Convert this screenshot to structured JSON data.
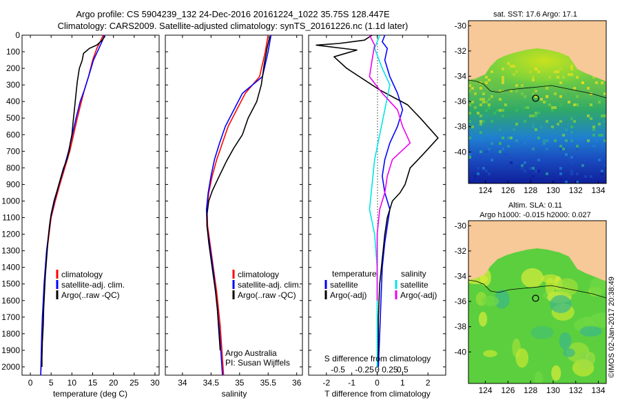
{
  "header": {
    "line1": "Argo profile: CS 5904239_132 24-Dec-2016 20161224_1022 35.75S 128.447E",
    "line2": "Climatology: CARS2009. Satellite-adjusted climatology: synTS_20161226.nc (1.1d later)"
  },
  "colors": {
    "climatology": "#ff0000",
    "satellite": "#0000ff",
    "argo": "#000000",
    "salinity_satellite": "#00e5e5",
    "salinity_argo": "#ee00ee",
    "land": "#f7c898"
  },
  "chart_data": [
    {
      "type": "line",
      "name": "temperature-profile",
      "xlabel": "temperature (deg C)",
      "ylabel": "",
      "xlim": [
        -2,
        31
      ],
      "ylim": [
        2050,
        0
      ],
      "xticks": [
        0,
        5,
        10,
        15,
        20,
        25,
        30
      ],
      "yticks": [
        0,
        100,
        200,
        300,
        400,
        500,
        600,
        700,
        800,
        900,
        1000,
        1100,
        1200,
        1300,
        1400,
        1500,
        1600,
        1700,
        1800,
        1900,
        2000
      ],
      "legend": [
        "climatology",
        "satellite-adj. clim.",
        "Argo(..raw -QC)"
      ],
      "series": [
        {
          "name": "climatology",
          "color": "#ff0000",
          "points": [
            [
              17.5,
              0
            ],
            [
              17,
              30
            ],
            [
              16,
              80
            ],
            [
              15,
              150
            ],
            [
              14,
              250
            ],
            [
              13,
              330
            ],
            [
              12.3,
              400
            ],
            [
              11.3,
              500
            ],
            [
              10.4,
              600
            ],
            [
              9.5,
              700
            ],
            [
              8.3,
              800
            ],
            [
              7.1,
              900
            ],
            [
              6,
              1000
            ],
            [
              5,
              1100
            ],
            [
              4.5,
              1200
            ],
            [
              4,
              1300
            ],
            [
              3.7,
              1400
            ],
            [
              3.4,
              1500
            ],
            [
              3.2,
              1600
            ],
            [
              3,
              1700
            ],
            [
              2.8,
              1800
            ],
            [
              2.7,
              1900
            ],
            [
              2.6,
              2000
            ],
            [
              2.5,
              2050
            ]
          ]
        },
        {
          "name": "satellite-adj. clim.",
          "color": "#0000ff",
          "points": [
            [
              17.8,
              0
            ],
            [
              17.4,
              30
            ],
            [
              16.5,
              80
            ],
            [
              15.2,
              150
            ],
            [
              14,
              250
            ],
            [
              13,
              330
            ],
            [
              12,
              400
            ],
            [
              11,
              500
            ],
            [
              10.1,
              600
            ],
            [
              9.2,
              700
            ],
            [
              8.1,
              800
            ],
            [
              6.9,
              900
            ],
            [
              5.8,
              1000
            ],
            [
              4.9,
              1100
            ],
            [
              4.4,
              1200
            ],
            [
              3.9,
              1300
            ],
            [
              3.6,
              1400
            ],
            [
              3.3,
              1500
            ],
            [
              3.1,
              1600
            ],
            [
              2.9,
              1700
            ],
            [
              2.75,
              1800
            ],
            [
              2.65,
              1900
            ],
            [
              2.55,
              2000
            ],
            [
              2.5,
              2050
            ]
          ]
        },
        {
          "name": "Argo(..raw -QC)",
          "color": "#000000",
          "points": [
            [
              18,
              5
            ],
            [
              17.3,
              30
            ],
            [
              16,
              60
            ],
            [
              14.2,
              80
            ],
            [
              12.8,
              110
            ],
            [
              12.5,
              150
            ],
            [
              11.8,
              200
            ],
            [
              11.3,
              280
            ],
            [
              11,
              350
            ],
            [
              10.8,
              400
            ],
            [
              10.6,
              450
            ],
            [
              10.3,
              520
            ],
            [
              10,
              600
            ],
            [
              9.6,
              650
            ],
            [
              9.3,
              700
            ],
            [
              8.8,
              750
            ],
            [
              8,
              800
            ],
            [
              7.2,
              870
            ],
            [
              6.4,
              940
            ],
            [
              5.7,
              1000
            ],
            [
              5,
              1080
            ],
            [
              4.6,
              1150
            ],
            [
              4.2,
              1250
            ],
            [
              3.9,
              1350
            ],
            [
              3.6,
              1450
            ],
            [
              3.4,
              1550
            ],
            [
              3.2,
              1650
            ],
            [
              3.1,
              1750
            ],
            [
              2.9,
              1850
            ],
            [
              2.8,
              1950
            ],
            [
              2.8,
              2000
            ]
          ]
        }
      ]
    },
    {
      "type": "line",
      "name": "salinity-profile",
      "xlabel": "salinity",
      "ylabel": "",
      "xlim": [
        33.7,
        36.1
      ],
      "ylim": [
        2050,
        0
      ],
      "xticks": [
        34,
        34.5,
        35,
        35.5,
        36
      ],
      "xticklabels": [
        "34",
        "34.5",
        "35",
        "35.5",
        "36"
      ],
      "legend": [
        "climatology",
        "satellite-adj. clim.",
        "Argo(..raw -QC)"
      ],
      "annotation": [
        "Argo Australia",
        "PI: Susan Wijffels"
      ],
      "series": [
        {
          "name": "climatology",
          "color": "#ff0000",
          "points": [
            [
              35.5,
              0
            ],
            [
              35.45,
              100
            ],
            [
              35.35,
              250
            ],
            [
              35.1,
              350
            ],
            [
              34.95,
              450
            ],
            [
              34.8,
              550
            ],
            [
              34.7,
              650
            ],
            [
              34.6,
              750
            ],
            [
              34.52,
              850
            ],
            [
              34.46,
              950
            ],
            [
              34.43,
              1050
            ],
            [
              34.44,
              1150
            ],
            [
              34.48,
              1250
            ],
            [
              34.52,
              1350
            ],
            [
              34.56,
              1450
            ],
            [
              34.6,
              1550
            ],
            [
              34.63,
              1650
            ],
            [
              34.66,
              1750
            ],
            [
              34.68,
              1850
            ],
            [
              34.7,
              1950
            ],
            [
              34.72,
              2050
            ]
          ]
        },
        {
          "name": "satellite-adj. clim.",
          "color": "#0000ff",
          "points": [
            [
              35.55,
              0
            ],
            [
              35.5,
              100
            ],
            [
              35.4,
              250
            ],
            [
              35.05,
              350
            ],
            [
              34.9,
              450
            ],
            [
              34.75,
              550
            ],
            [
              34.65,
              650
            ],
            [
              34.56,
              750
            ],
            [
              34.5,
              850
            ],
            [
              34.45,
              950
            ],
            [
              34.42,
              1050
            ],
            [
              34.43,
              1150
            ],
            [
              34.47,
              1250
            ],
            [
              34.51,
              1350
            ],
            [
              34.55,
              1450
            ],
            [
              34.58,
              1550
            ],
            [
              34.61,
              1650
            ],
            [
              34.64,
              1750
            ],
            [
              34.66,
              1850
            ],
            [
              34.68,
              1950
            ],
            [
              34.7,
              2050
            ]
          ]
        },
        {
          "name": "Argo(..raw -QC)",
          "color": "#000000",
          "points": [
            [
              35.53,
              5
            ],
            [
              35.48,
              80
            ],
            [
              35.43,
              180
            ],
            [
              35.38,
              300
            ],
            [
              35.3,
              400
            ],
            [
              35.15,
              500
            ],
            [
              35.05,
              600
            ],
            [
              34.9,
              680
            ],
            [
              34.77,
              760
            ],
            [
              34.63,
              860
            ],
            [
              34.52,
              940
            ],
            [
              34.46,
              1000
            ],
            [
              34.43,
              1080
            ],
            [
              34.43,
              1150
            ],
            [
              34.46,
              1250
            ],
            [
              34.5,
              1350
            ],
            [
              34.54,
              1450
            ],
            [
              34.58,
              1550
            ],
            [
              34.61,
              1650
            ],
            [
              34.63,
              1750
            ],
            [
              34.65,
              1850
            ],
            [
              34.66,
              1900
            ]
          ]
        }
      ]
    },
    {
      "type": "line",
      "name": "difference-from-climatology",
      "xlabel": "T difference from climatology",
      "xlabel_top": "S difference from climatology",
      "xlim": [
        -2.7,
        2.7
      ],
      "ylim": [
        2050,
        0
      ],
      "xticks_T": [
        -2,
        -1,
        0,
        1,
        2
      ],
      "xticks_S": [
        "-0.5",
        "-0.25",
        "0",
        "0.25",
        "0.5"
      ],
      "legend_left_title": "temperature",
      "legend_right_title": "salinity",
      "legend": [
        "satellite",
        "Argo(-adj)",
        "satellite",
        "Argo(-adj)"
      ],
      "series": [
        {
          "name": "temperature satellite",
          "color": "#0000ff",
          "points": [
            [
              0.3,
              0
            ],
            [
              0.2,
              40
            ],
            [
              0.4,
              80
            ],
            [
              0.3,
              150
            ],
            [
              0.5,
              250
            ],
            [
              0.8,
              350
            ],
            [
              1,
              450
            ],
            [
              0.8,
              550
            ],
            [
              0.5,
              650
            ],
            [
              0.3,
              750
            ],
            [
              0.2,
              850
            ],
            [
              0.3,
              950
            ],
            [
              0.5,
              1050
            ],
            [
              0.4,
              1150
            ],
            [
              0.3,
              1250
            ],
            [
              0.2,
              1400
            ],
            [
              0.15,
              1600
            ],
            [
              0.1,
              1800
            ],
            [
              0.05,
              2000
            ]
          ]
        },
        {
          "name": "temperature Argo(-adj)",
          "color": "#000000",
          "points": [
            [
              -0.2,
              0
            ],
            [
              -0.5,
              30
            ],
            [
              -1.5,
              50
            ],
            [
              -2.4,
              60
            ],
            [
              -0.8,
              90
            ],
            [
              -1.7,
              130
            ],
            [
              -1.2,
              200
            ],
            [
              0.1,
              330
            ],
            [
              1.2,
              420
            ],
            [
              1.7,
              500
            ],
            [
              2.4,
              620
            ],
            [
              1.8,
              720
            ],
            [
              1.3,
              800
            ],
            [
              1.1,
              900
            ],
            [
              0.9,
              950
            ],
            [
              0.6,
              1000
            ],
            [
              0.4,
              1100
            ],
            [
              0.3,
              1200
            ],
            [
              0.2,
              1350
            ],
            [
              0.1,
              1500
            ],
            [
              0.05,
              1700
            ],
            [
              0.05,
              1900
            ],
            [
              0,
              2000
            ]
          ]
        },
        {
          "name": "salinity satellite",
          "color": "#00e5e5",
          "points": [
            [
              0.1,
              0
            ],
            [
              -0.1,
              80
            ],
            [
              0.2,
              200
            ],
            [
              0.5,
              300
            ],
            [
              0.3,
              450
            ],
            [
              0.1,
              600
            ],
            [
              -0.1,
              750
            ],
            [
              -0.2,
              900
            ],
            [
              -0.3,
              1050
            ],
            [
              -0.1,
              1200
            ],
            [
              0,
              1400
            ],
            [
              0,
              1600
            ],
            [
              0,
              1800
            ],
            [
              0,
              2000
            ]
          ]
        },
        {
          "name": "salinity Argo(-adj)",
          "color": "#ee00ee",
          "points": [
            [
              -0.3,
              0
            ],
            [
              -0.1,
              60
            ],
            [
              -0.2,
              150
            ],
            [
              -0.3,
              250
            ],
            [
              0.2,
              350
            ],
            [
              0.8,
              450
            ],
            [
              1,
              550
            ],
            [
              1.3,
              650
            ],
            [
              0.6,
              750
            ],
            [
              0.4,
              850
            ],
            [
              0.3,
              950
            ],
            [
              0.1,
              1050
            ],
            [
              0,
              1200
            ],
            [
              0,
              1400
            ],
            [
              0,
              1600
            ]
          ]
        }
      ]
    },
    {
      "type": "heatmap",
      "name": "sst-map",
      "title": "sat. SST: 17.6  Argo: 17.1",
      "xlim": [
        122.5,
        134.7
      ],
      "ylim": [
        -42.5,
        -29.6
      ],
      "xticks": [
        124,
        126,
        128,
        130,
        132,
        134
      ],
      "yticks": [
        -30,
        -32,
        -34,
        -36,
        -38,
        -40
      ],
      "profile_location": [
        128.447,
        -35.75
      ]
    },
    {
      "type": "heatmap",
      "name": "sla-map",
      "title": "Altim. SLA: 0.11",
      "subtitle": "Argo h1000: -0.015 h2000: 0.027",
      "xlim": [
        122.5,
        134.7
      ],
      "ylim": [
        -42.5,
        -29.6
      ],
      "xticks": [
        124,
        126,
        128,
        130,
        132,
        134
      ],
      "yticks": [
        -30,
        -32,
        -34,
        -36,
        -38,
        -40
      ],
      "profile_location": [
        128.447,
        -35.75
      ]
    }
  ],
  "credit": "©IMOS 02-Jan-2017 20:38:49"
}
